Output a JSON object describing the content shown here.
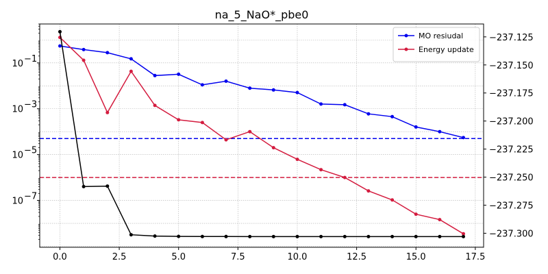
{
  "chart_data": {
    "type": "line",
    "title": "na_5_NaO*_pbe0",
    "xlabel": "",
    "ylabel": "",
    "xlim": [
      -0.85,
      17.85
    ],
    "x_ticks": [
      0.0,
      2.5,
      5.0,
      7.5,
      10.0,
      12.5,
      15.0,
      17.5
    ],
    "x_tick_labels": [
      "0.0",
      "2.5",
      "5.0",
      "7.5",
      "10.0",
      "12.5",
      "15.0",
      "17.5"
    ],
    "left_axis": {
      "scale": "log",
      "ylim": [
        9e-10,
        5
      ],
      "ticks": [
        0.1,
        0.001,
        1e-05,
        1e-07
      ],
      "tick_labels": [
        "10",
        "10",
        "10",
        "10"
      ],
      "tick_exponents": [
        "−1",
        "−3",
        "−5",
        "−7"
      ]
    },
    "right_axis": {
      "scale": "linear",
      "ylim": [
        -237.3125,
        -237.1135
      ],
      "ticks": [
        -237.125,
        -237.15,
        -237.175,
        -237.2,
        -237.225,
        -237.25,
        -237.275,
        -237.3
      ],
      "tick_labels": [
        "−237.125",
        "−237.150",
        "−237.175",
        "−237.200",
        "−237.225",
        "−237.250",
        "−237.275",
        "−237.300"
      ]
    },
    "grid": true,
    "legend_position": "top-right",
    "series": [
      {
        "name": "MO resiudal",
        "axis": "left",
        "color": "#0000ee",
        "x": [
          0,
          1,
          2,
          3,
          4,
          5,
          6,
          7,
          8,
          9,
          10,
          11,
          12,
          13,
          14,
          15,
          16,
          17
        ],
        "values": [
          0.55,
          0.38,
          0.28,
          0.15,
          0.028,
          0.032,
          0.011,
          0.016,
          0.0079,
          0.0066,
          0.0051,
          0.0016,
          0.0015,
          0.0006,
          0.00045,
          0.00016,
          0.0001,
          5.5e-05
        ]
      },
      {
        "name": "Energy update",
        "axis": "left",
        "color": "#d41c3f",
        "x": [
          0,
          1,
          2,
          3,
          4,
          5,
          6,
          7,
          8,
          9,
          10,
          11,
          12,
          13,
          14,
          15,
          16,
          17
        ],
        "values": [
          1.3,
          0.13,
          0.00068,
          0.043,
          0.0014,
          0.00033,
          0.00025,
          4.4e-05,
          0.0001,
          2e-05,
          6.2e-06,
          2.2e-06,
          1e-06,
          2.6e-07,
          1.05e-07,
          2.5e-08,
          1.45e-08,
          3.5e-09
        ]
      },
      {
        "axis": "right",
        "color": "#000000",
        "x": [
          0,
          1,
          2,
          3,
          4,
          5,
          6,
          7,
          8,
          9,
          10,
          11,
          12,
          13,
          14,
          15,
          16,
          17
        ],
        "values": [
          -237.1204,
          -237.2584,
          -237.258,
          -237.3013,
          -237.3025,
          -237.3028,
          -237.3029,
          -237.3029,
          -237.303,
          -237.303,
          -237.303,
          -237.303,
          -237.303,
          -237.303,
          -237.303,
          -237.303,
          -237.303,
          -237.303
        ]
      }
    ],
    "thresholds": [
      {
        "axis": "left",
        "value": 5e-05,
        "color": "#0000ee",
        "style": "dashed"
      },
      {
        "axis": "left",
        "value": 1e-06,
        "color": "#d41c3f",
        "style": "dashed"
      }
    ]
  }
}
